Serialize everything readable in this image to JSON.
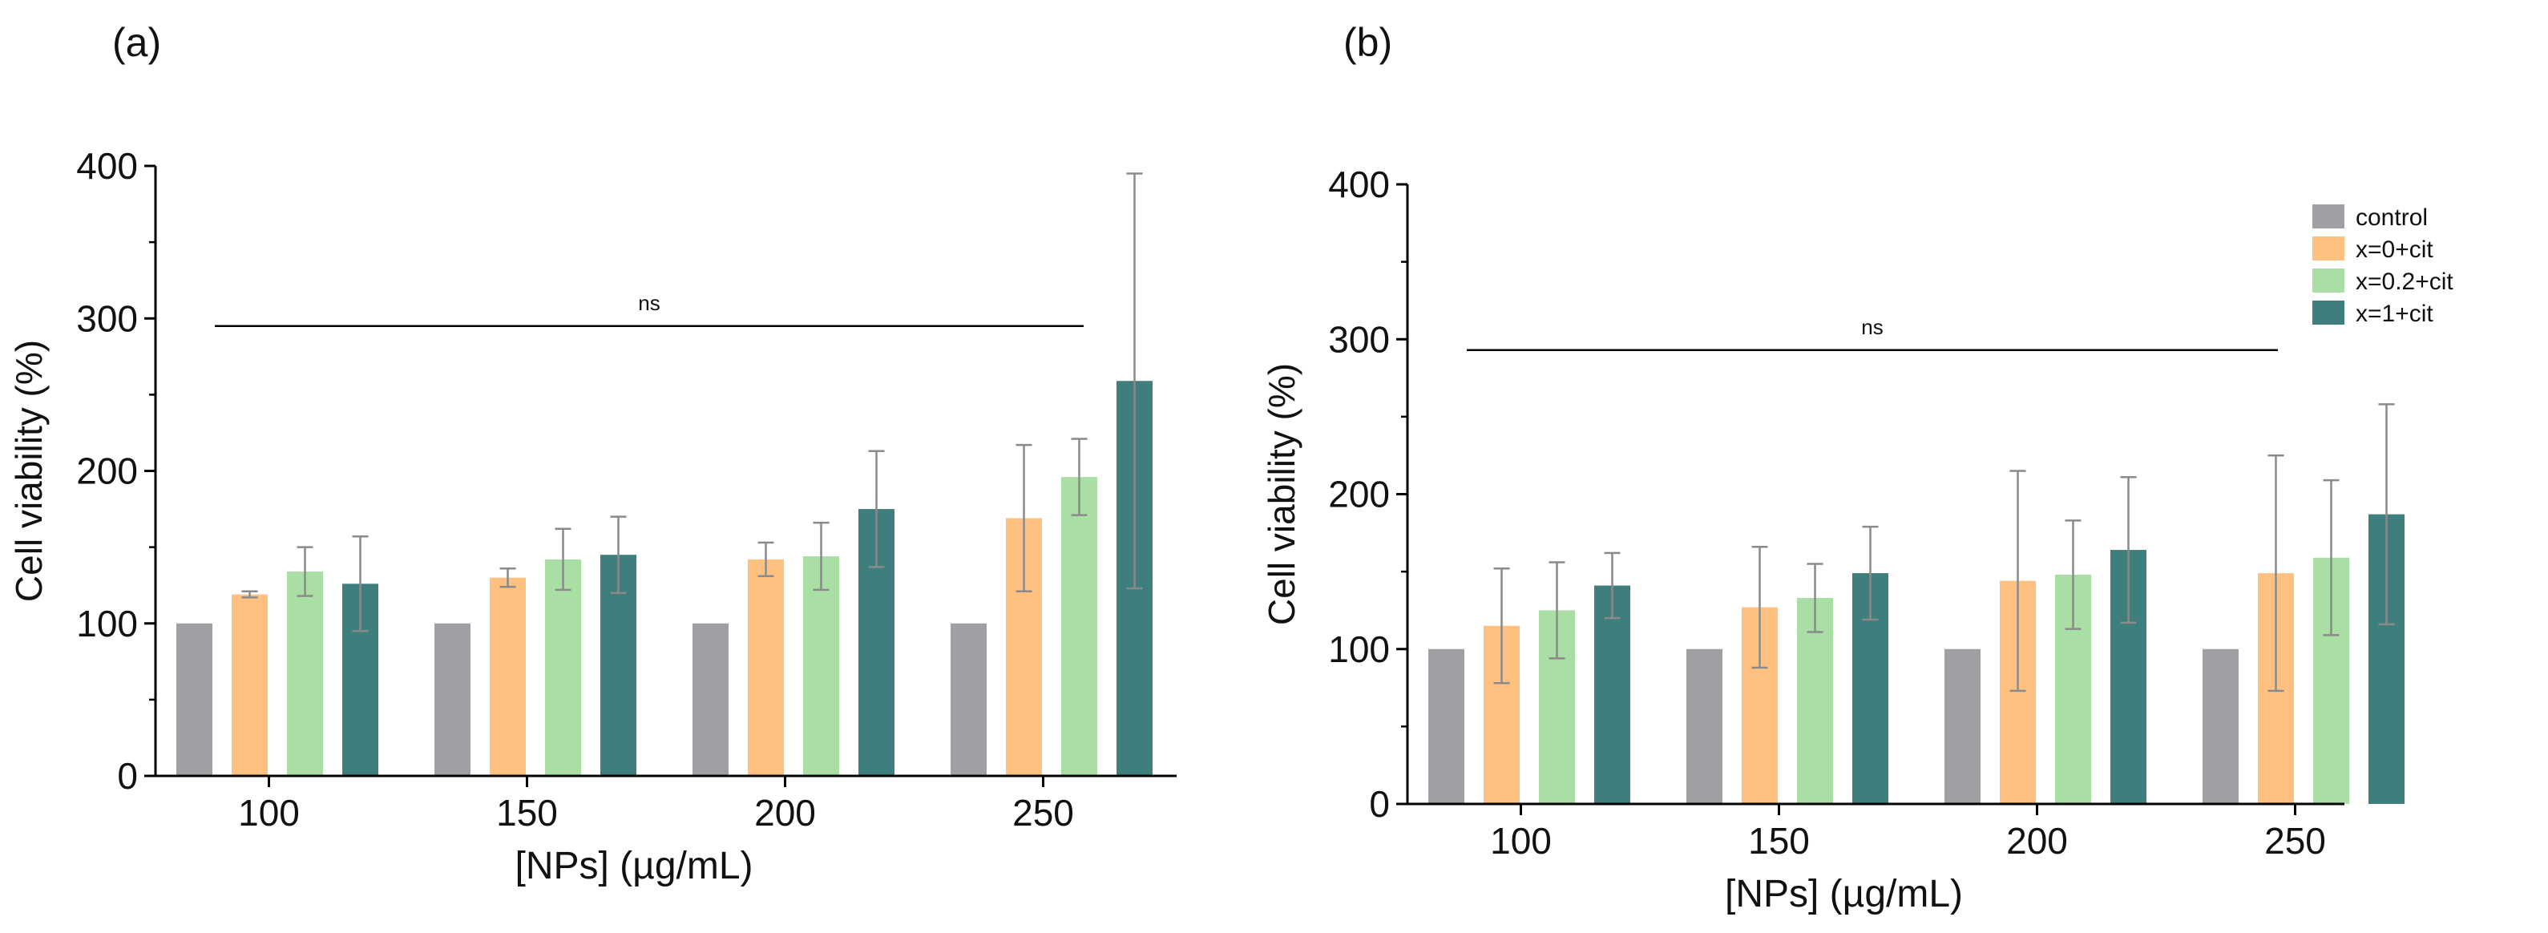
{
  "chart_data": [
    {
      "type": "bar",
      "panel_label": "(a)",
      "title": "",
      "xlabel": "[NPs] (µg/mL)",
      "ylabel": "Cell viability (%)",
      "ylim": [
        0,
        400
      ],
      "yticks": [
        0,
        100,
        200,
        300,
        400
      ],
      "categories": [
        "100",
        "150",
        "200",
        "250"
      ],
      "series": [
        {
          "name": "control",
          "color": "#a09fa4",
          "values": [
            100,
            100,
            100,
            100
          ],
          "errors": [
            0,
            0,
            0,
            0
          ]
        },
        {
          "name": "x=0+cit",
          "color": "#ffc080",
          "values": [
            119,
            130,
            142,
            169
          ],
          "errors": [
            2,
            6,
            11,
            48
          ]
        },
        {
          "name": "x=0.2+cit",
          "color": "#a9dfa5",
          "values": [
            134,
            142,
            144,
            196
          ],
          "errors": [
            16,
            20,
            22,
            25
          ]
        },
        {
          "name": "x=1+cit",
          "color": "#3e7f7d",
          "values": [
            126,
            145,
            175,
            259
          ],
          "errors": [
            31,
            25,
            38,
            136
          ]
        }
      ],
      "significance": {
        "label": "ns",
        "value": 295
      },
      "grid": false,
      "legend": "none"
    },
    {
      "type": "bar",
      "panel_label": "(b)",
      "title": "",
      "xlabel": "[NPs] (µg/mL)",
      "ylabel": "Cell viability (%)",
      "ylim": [
        0,
        400
      ],
      "yticks": [
        0,
        100,
        200,
        300,
        400
      ],
      "categories": [
        "100",
        "150",
        "200",
        "250"
      ],
      "series": [
        {
          "name": "control",
          "color": "#a09fa4",
          "values": [
            100,
            100,
            100,
            100
          ],
          "errors": [
            0,
            0,
            0,
            0
          ]
        },
        {
          "name": "x=0+cit",
          "color": "#ffc080",
          "values": [
            115,
            127,
            144,
            149
          ],
          "errors": [
            37,
            39,
            71,
            76
          ]
        },
        {
          "name": "x=0.2+cit",
          "color": "#a9dfa5",
          "values": [
            125,
            133,
            148,
            159
          ],
          "errors": [
            31,
            22,
            35,
            50
          ]
        },
        {
          "name": "x=1+cit",
          "color": "#3e7f7d",
          "values": [
            141,
            149,
            164,
            187
          ],
          "errors": [
            21,
            30,
            47,
            71
          ]
        }
      ],
      "significance": {
        "label": "ns",
        "value": 293
      },
      "grid": false,
      "legend": "top-right"
    }
  ]
}
